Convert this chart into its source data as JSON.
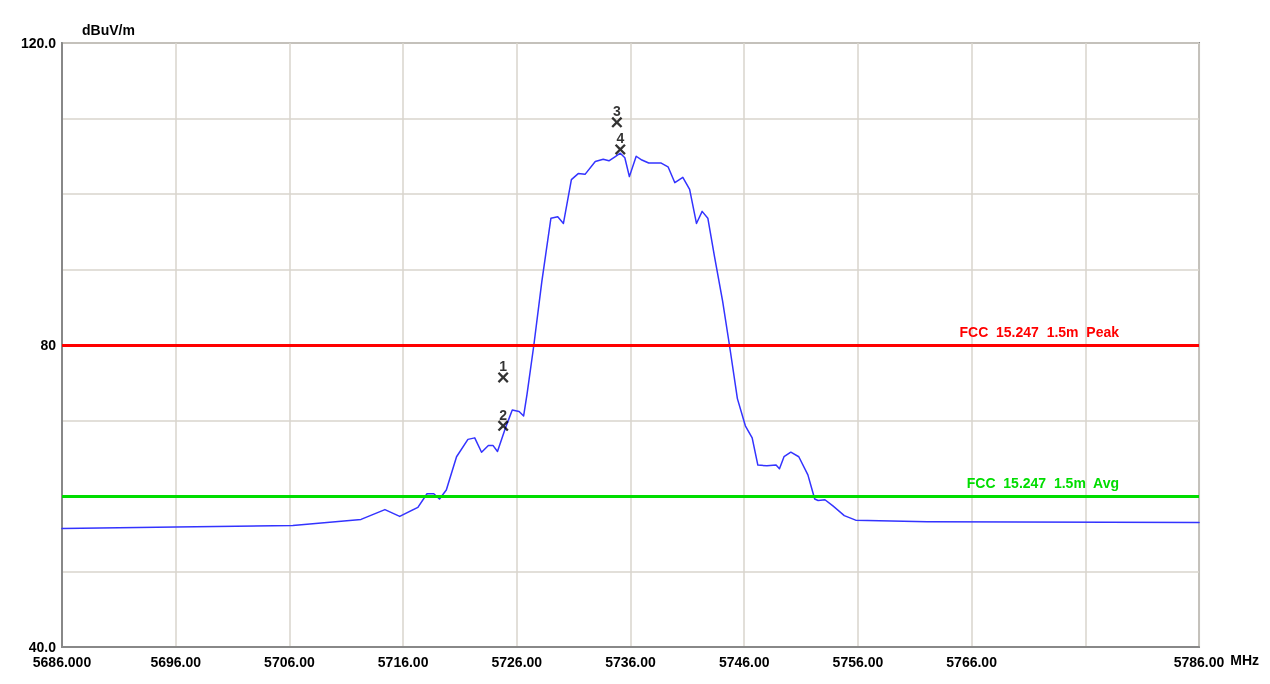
{
  "chart_data": {
    "type": "line",
    "xlabel": "MHz",
    "ylabel": "dBuV/m",
    "xlim": [
      5686,
      5786
    ],
    "ylim": [
      40,
      120
    ],
    "xticks": [
      {
        "value": 5686,
        "label": "5686.000"
      },
      {
        "value": 5696,
        "label": "5696.00"
      },
      {
        "value": 5706,
        "label": "5706.00"
      },
      {
        "value": 5716,
        "label": "5716.00"
      },
      {
        "value": 5726,
        "label": "5726.00"
      },
      {
        "value": 5736,
        "label": "5736.00"
      },
      {
        "value": 5746,
        "label": "5746.00"
      },
      {
        "value": 5756,
        "label": "5756.00"
      },
      {
        "value": 5766,
        "label": "5766.00"
      },
      {
        "value": 5776,
        "label": null
      },
      {
        "value": 5786,
        "label": "5786.00"
      }
    ],
    "yticks": [
      {
        "value": 40,
        "label": "40.0"
      },
      {
        "value": 50,
        "label": null
      },
      {
        "value": 60,
        "label": null
      },
      {
        "value": 70,
        "label": null
      },
      {
        "value": 80,
        "label": "80"
      },
      {
        "value": 90,
        "label": null
      },
      {
        "value": 100,
        "label": null
      },
      {
        "value": 110,
        "label": null
      },
      {
        "value": 120,
        "label": "120.0"
      }
    ],
    "grid": true,
    "series": [
      {
        "color": "#3333ff",
        "marker": "none",
        "line_style": "solid",
        "x": [
          5686,
          5696,
          5706.3,
          5712.3,
          5714.4,
          5715.7,
          5717.3,
          5718.1,
          5718.7,
          5719.2,
          5719.8,
          5720.7,
          5721.7,
          5722.3,
          5722.9,
          5723.5,
          5723.9,
          5724.3,
          5725.0,
          5725.6,
          5726.2,
          5726.6,
          5726.9,
          5727.5,
          5728.2,
          5729.0,
          5729.6,
          5730.1,
          5730.8,
          5731.4,
          5732.0,
          5732.9,
          5733.6,
          5734.1,
          5734.6,
          5735.1,
          5735.5,
          5735.9,
          5736.5,
          5737.0,
          5737.6,
          5738.7,
          5739.3,
          5739.9,
          5740.6,
          5741.2,
          5741.8,
          5742.3,
          5742.8,
          5743.4,
          5744.1,
          5744.7,
          5745.4,
          5746.1,
          5746.7,
          5747.2,
          5748.0,
          5748.8,
          5749.1,
          5749.5,
          5750.1,
          5750.8,
          5751.6,
          5752.2,
          5752.5,
          5753.1,
          5753.8,
          5754.8,
          5755.8,
          5762.1,
          5786
        ],
        "values": [
          55.7,
          55.9,
          56.1,
          56.9,
          58.2,
          57.3,
          58.5,
          60.3,
          60.3,
          59.6,
          60.8,
          65.2,
          67.5,
          67.7,
          65.8,
          66.7,
          66.7,
          65.9,
          69.0,
          71.4,
          71.2,
          70.6,
          73.5,
          80.0,
          88.4,
          96.8,
          97.0,
          96.1,
          101.9,
          102.7,
          102.6,
          104.3,
          104.6,
          104.4,
          104.9,
          105.4,
          104.8,
          102.3,
          105.0,
          104.5,
          104.1,
          104.1,
          103.6,
          101.5,
          102.2,
          100.6,
          96.1,
          97.7,
          96.8,
          91.6,
          85.8,
          80.0,
          72.9,
          69.3,
          67.7,
          64.1,
          64.0,
          64.1,
          63.6,
          65.2,
          65.8,
          65.2,
          62.8,
          59.6,
          59.4,
          59.5,
          58.7,
          57.4,
          56.8,
          56.6,
          56.5
        ]
      },
      {
        "type": "scatter",
        "color": "#000000",
        "marker": "cross",
        "x": [
          5724.8,
          5724.8,
          5734.8,
          5735.1
        ],
        "values": [
          75.7,
          69.3,
          109.5,
          105.9
        ]
      }
    ],
    "annotations": [
      {
        "text": "1",
        "x": 5724.8,
        "y": 75.7
      },
      {
        "text": "2",
        "x": 5724.8,
        "y": 69.3
      },
      {
        "text": "3",
        "x": 5734.8,
        "y": 109.5
      },
      {
        "text": "4",
        "x": 5735.1,
        "y": 105.9
      }
    ],
    "ref_lines": [
      {
        "axis": "y",
        "value": 80,
        "label": "FCC  15.247  1.5m  Peak",
        "color": "#ff0000",
        "line_style": "solid"
      },
      {
        "axis": "y",
        "value": 60,
        "label": "FCC  15.247  1.5m  Avg",
        "color": "#00dd00",
        "line_style": "solid"
      }
    ]
  }
}
